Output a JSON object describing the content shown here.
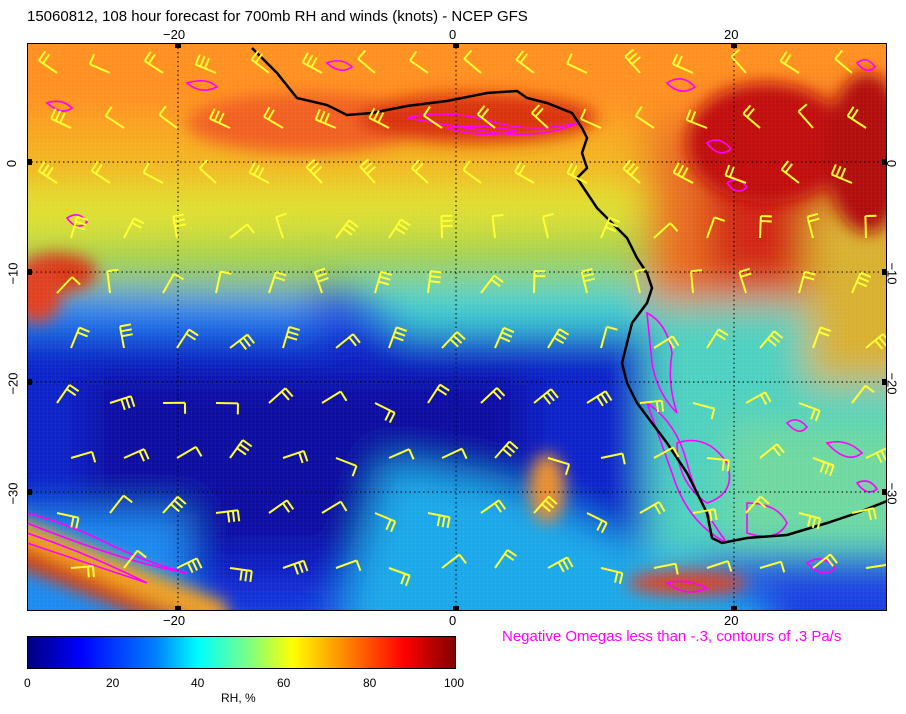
{
  "title": "15060812, 108 hour forecast for 700mb RH and winds (knots) - NCEP GFS",
  "x_ticks": [
    {
      "value": -20,
      "label": "−20"
    },
    {
      "value": 0,
      "label": "0"
    },
    {
      "value": 20,
      "label": "20"
    }
  ],
  "y_ticks": [
    {
      "value": 0,
      "label": "0"
    },
    {
      "value": -10,
      "label": "−10"
    },
    {
      "value": -20,
      "label": "−20"
    },
    {
      "value": -30,
      "label": "−30"
    }
  ],
  "map_extent": {
    "lon_min": -30,
    "lon_max": 31,
    "lat_min": -40,
    "lat_max": 10
  },
  "note": "Negative Omegas less than -.3, contours of .3 Pa/s",
  "colorbar": {
    "ticks": [
      "0",
      "20",
      "40",
      "60",
      "80",
      "100"
    ],
    "label": "RH, %",
    "colors": [
      "#000080",
      "#0000ff",
      "#0080ff",
      "#00ffff",
      "#80ff80",
      "#ffff00",
      "#ff8000",
      "#ff0000",
      "#800000"
    ]
  },
  "colors": {
    "omega_contour": "#ff00ff",
    "wind_barb": "#ffff33",
    "coastline": "#000000",
    "grid": "#000000"
  }
}
